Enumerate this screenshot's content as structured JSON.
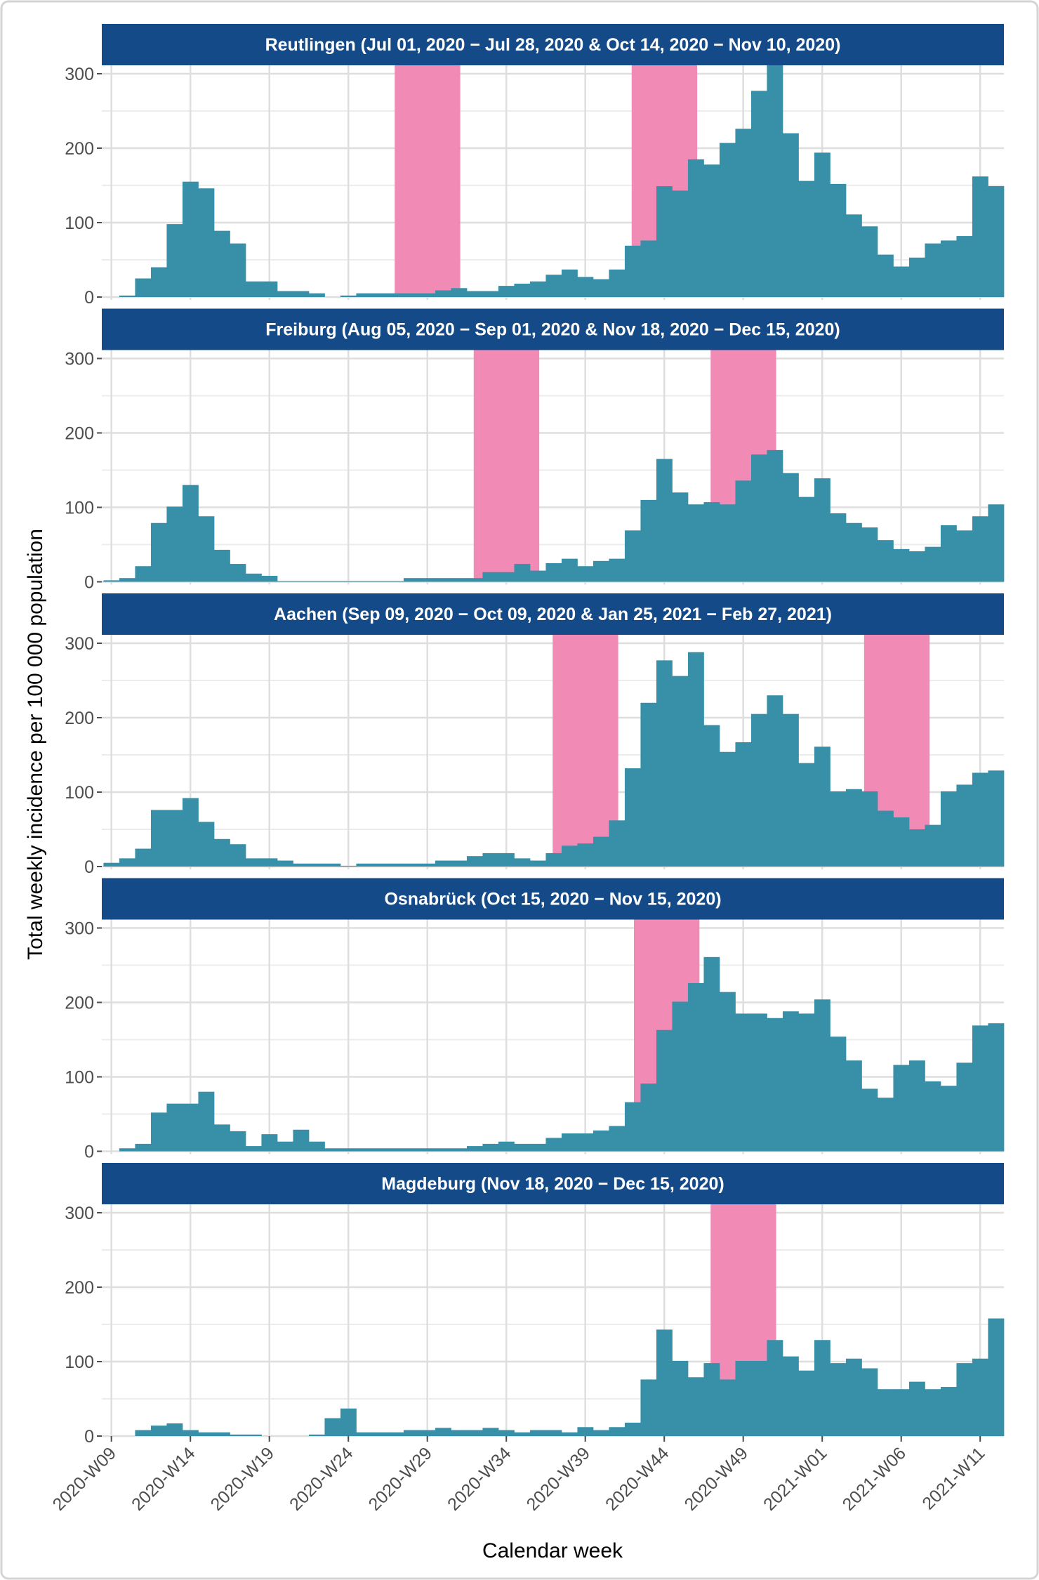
{
  "chart_data": {
    "type": "bar",
    "layout": "faceted, 5 panels stacked vertically, shared x axis",
    "xlabel": "Calendar week",
    "ylabel": "Total weekly incidence per 100 000 population",
    "ylim": [
      0,
      310
    ],
    "y_ticks": [
      0,
      100,
      200,
      300
    ],
    "grid": true,
    "legend": "none",
    "colors": {
      "bars": "#3790a7",
      "shaded_period": "#f28ab6",
      "strip": "#144a87",
      "strip_text": "#ffffff",
      "grid": "#dedede"
    },
    "x_tick_labels": [
      "2020-W09",
      "2020-W14",
      "2020-W19",
      "2020-W24",
      "2020-W29",
      "2020-W34",
      "2020-W39",
      "2020-W44",
      "2020-W49",
      "2021-W01",
      "2021-W06",
      "2021-W11"
    ],
    "x": [
      "2020-W09",
      "2020-W10",
      "2020-W11",
      "2020-W12",
      "2020-W13",
      "2020-W14",
      "2020-W15",
      "2020-W16",
      "2020-W17",
      "2020-W18",
      "2020-W19",
      "2020-W20",
      "2020-W21",
      "2020-W22",
      "2020-W23",
      "2020-W24",
      "2020-W25",
      "2020-W26",
      "2020-W27",
      "2020-W28",
      "2020-W29",
      "2020-W30",
      "2020-W31",
      "2020-W32",
      "2020-W33",
      "2020-W34",
      "2020-W35",
      "2020-W36",
      "2020-W37",
      "2020-W38",
      "2020-W39",
      "2020-W40",
      "2020-W41",
      "2020-W42",
      "2020-W43",
      "2020-W44",
      "2020-W45",
      "2020-W46",
      "2020-W47",
      "2020-W48",
      "2020-W49",
      "2020-W50",
      "2020-W51",
      "2020-W52",
      "2020-W53",
      "2021-W01",
      "2021-W02",
      "2021-W03",
      "2021-W04",
      "2021-W05",
      "2021-W06",
      "2021-W07",
      "2021-W08",
      "2021-W09",
      "2021-W10",
      "2021-W11",
      "2021-W12"
    ],
    "panels": [
      {
        "title": "Reutlingen (Jul 01, 2020 − Jul 28, 2020 & Oct 14, 2020 − Nov 10, 2020)",
        "shaded_periods": [
          [
            "2020-07-01",
            "2020-07-28"
          ],
          [
            "2020-10-14",
            "2020-11-10"
          ]
        ],
        "values": [
          0,
          2,
          25,
          40,
          98,
          155,
          146,
          89,
          72,
          21,
          21,
          8,
          8,
          5,
          0,
          2,
          5,
          5,
          5,
          5,
          5,
          9,
          12,
          8,
          8,
          15,
          18,
          21,
          30,
          37,
          27,
          24,
          37,
          69,
          76,
          149,
          143,
          185,
          178,
          207,
          226,
          277,
          315,
          220,
          156,
          194,
          152,
          111,
          95,
          57,
          41,
          53,
          72,
          76,
          82,
          162,
          149
        ]
      },
      {
        "title": "Freiburg (Aug 05, 2020 − Sep 01, 2020 & Nov 18, 2020 − Dec 15, 2020)",
        "shaded_periods": [
          [
            "2020-08-05",
            "2020-09-01"
          ],
          [
            "2020-11-18",
            "2020-12-15"
          ]
        ],
        "values": [
          2,
          5,
          21,
          79,
          101,
          130,
          88,
          43,
          24,
          11,
          8,
          1,
          1,
          1,
          1,
          1,
          1,
          1,
          1,
          5,
          5,
          5,
          5,
          5,
          13,
          13,
          24,
          15,
          25,
          31,
          21,
          28,
          31,
          69,
          110,
          165,
          120,
          104,
          107,
          104,
          136,
          171,
          177,
          146,
          114,
          139,
          92,
          79,
          73,
          56,
          44,
          41,
          47,
          76,
          69,
          88,
          104
        ]
      },
      {
        "title": "Aachen (Sep 09, 2020 − Oct 09, 2020 & Jan 25, 2021 − Feb 27, 2021)",
        "shaded_periods": [
          [
            "2020-09-09",
            "2020-10-09"
          ],
          [
            "2021-01-25",
            "2021-02-27"
          ]
        ],
        "values": [
          5,
          11,
          24,
          76,
          76,
          92,
          60,
          37,
          30,
          11,
          11,
          8,
          4,
          4,
          4,
          1,
          4,
          4,
          4,
          4,
          4,
          8,
          8,
          14,
          18,
          18,
          11,
          8,
          18,
          28,
          31,
          40,
          62,
          132,
          220,
          277,
          256,
          288,
          190,
          154,
          167,
          205,
          230,
          205,
          139,
          161,
          101,
          104,
          101,
          75,
          66,
          50,
          56,
          101,
          110,
          126,
          129
        ]
      },
      {
        "title": "Osnabrück (Oct 15, 2020 − Nov 15, 2020)",
        "shaded_periods": [
          [
            "2020-10-15",
            "2020-11-15"
          ]
        ],
        "values": [
          0,
          4,
          10,
          52,
          64,
          64,
          80,
          36,
          27,
          7,
          23,
          13,
          29,
          13,
          4,
          4,
          4,
          4,
          4,
          4,
          4,
          4,
          4,
          7,
          10,
          13,
          10,
          10,
          18,
          24,
          24,
          28,
          34,
          66,
          91,
          163,
          201,
          226,
          261,
          214,
          185,
          185,
          179,
          188,
          185,
          204,
          154,
          122,
          84,
          72,
          116,
          122,
          94,
          88,
          119,
          169,
          172
        ]
      },
      {
        "title": "Magdeburg (Nov 18, 2020 − Dec 15, 2020)",
        "shaded_periods": [
          [
            "2020-11-18",
            "2020-12-15"
          ]
        ],
        "values": [
          0,
          0,
          8,
          14,
          17,
          8,
          5,
          5,
          2,
          2,
          0,
          0,
          0,
          2,
          24,
          37,
          5,
          5,
          5,
          8,
          8,
          11,
          8,
          8,
          11,
          8,
          5,
          8,
          8,
          5,
          12,
          8,
          12,
          18,
          76,
          143,
          101,
          79,
          98,
          76,
          101,
          101,
          129,
          107,
          88,
          129,
          98,
          104,
          91,
          63,
          63,
          73,
          63,
          66,
          98,
          104,
          158
        ]
      }
    ]
  }
}
